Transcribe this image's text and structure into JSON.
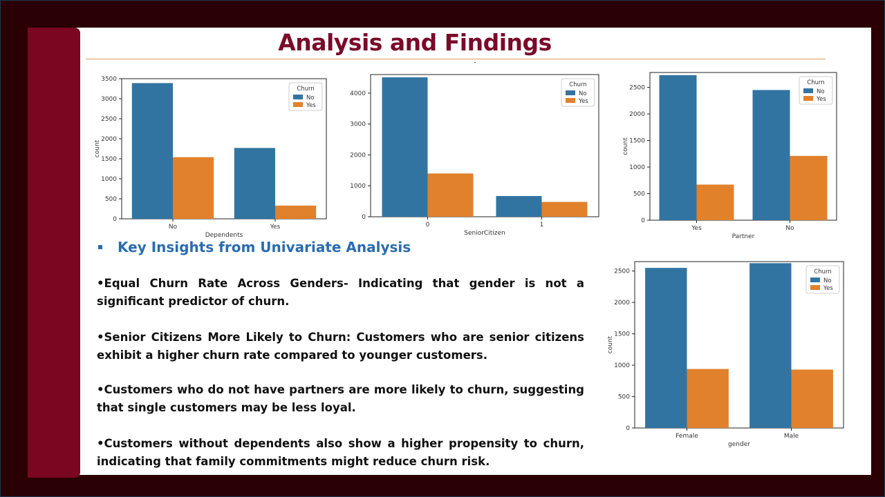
{
  "slide": {
    "title": "Analysis and Findings",
    "colors": {
      "frame": "#2a0004",
      "band": "#7a0622",
      "title": "#7a0a2a",
      "rule": "#e09a5a",
      "heading": "#2a6cb0",
      "no": "#3274a1",
      "yes": "#e1812c"
    }
  },
  "insights": {
    "heading": "Key Insights from Univariate Analysis",
    "items": [
      "•Equal Churn Rate Across Genders- Indicating that gender is not a significant predictor of churn.",
      "•Senior Citizens More Likely to Churn: Customers who are senior citizens exhibit a higher churn rate compared to younger customers.",
      "•Customers who do not have partners are more likely to churn, suggesting that single customers may be less loyal.",
      "•Customers without dependents also show a higher propensity to churn, indicating that family commitments might reduce churn risk."
    ]
  },
  "chart_data": [
    {
      "type": "bar",
      "categories": [
        "No",
        "Yes"
      ],
      "series": [
        {
          "name": "No",
          "values": [
            3390,
            1770
          ]
        },
        {
          "name": "Yes",
          "values": [
            1540,
            330
          ]
        }
      ],
      "xlabel": "Dependents",
      "ylabel": "count",
      "ylim": [
        0,
        3500
      ],
      "yticks": [
        0,
        500,
        1000,
        1500,
        2000,
        2500,
        3000,
        3500
      ],
      "legend_title": "Churn",
      "legend": "top-right",
      "grid": false
    },
    {
      "type": "bar",
      "categories": [
        "0",
        "1"
      ],
      "series": [
        {
          "name": "No",
          "values": [
            4510,
            670
          ]
        },
        {
          "name": "Yes",
          "values": [
            1400,
            480
          ]
        }
      ],
      "xlabel": "SeniorCitizen",
      "ylabel": "",
      "ylim": [
        0,
        4600
      ],
      "yticks": [
        0,
        1000,
        2000,
        3000,
        4000
      ],
      "legend_title": "Churn",
      "legend": "top-right",
      "grid": false
    },
    {
      "type": "bar",
      "categories": [
        "Yes",
        "No"
      ],
      "series": [
        {
          "name": "No",
          "values": [
            2730,
            2450
          ]
        },
        {
          "name": "Yes",
          "values": [
            670,
            1210
          ]
        }
      ],
      "xlabel": "Partner",
      "ylabel": "count",
      "ylim": [
        0,
        2780
      ],
      "yticks": [
        0,
        500,
        1000,
        1500,
        2000,
        2500
      ],
      "legend_title": "Churn",
      "legend": "top-right",
      "grid": false
    },
    {
      "type": "bar",
      "categories": [
        "Female",
        "Male"
      ],
      "series": [
        {
          "name": "No",
          "values": [
            2550,
            2625
          ]
        },
        {
          "name": "Yes",
          "values": [
            940,
            930
          ]
        }
      ],
      "xlabel": "gender",
      "ylabel": "count",
      "ylim": [
        0,
        2650
      ],
      "yticks": [
        0,
        500,
        1000,
        1500,
        2000,
        2500
      ],
      "legend_title": "Churn",
      "legend": "top-right",
      "grid": false
    }
  ]
}
